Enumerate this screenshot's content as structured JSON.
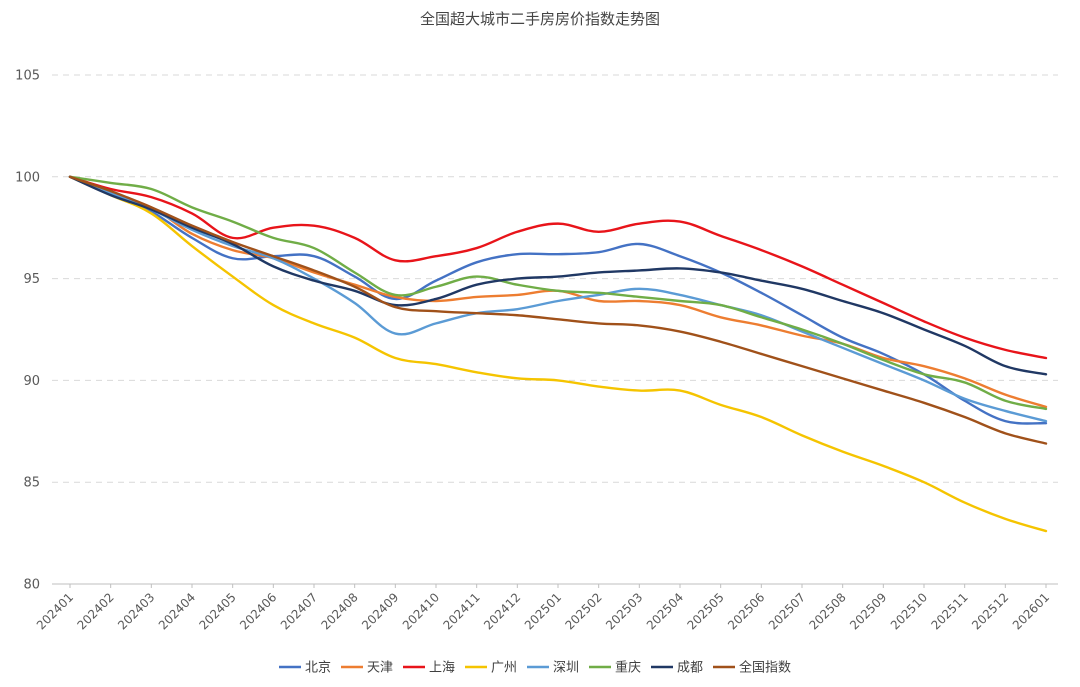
{
  "chart_data": {
    "type": "line",
    "title": "全国超大城市二手房房价指数走势图",
    "xlabel": "",
    "ylabel": "",
    "ylim": [
      80,
      105
    ],
    "yticks": [
      80,
      85,
      90,
      95,
      100,
      105
    ],
    "grid": true,
    "legend_position": "bottom",
    "x": [
      "202401",
      "202402",
      "202403",
      "202404",
      "202405",
      "202406",
      "202407",
      "202408",
      "202409",
      "202410",
      "202411",
      "202412",
      "202501",
      "202502",
      "202503",
      "202504",
      "202505",
      "202506",
      "202507",
      "202508",
      "202509",
      "202510",
      "202511",
      "202512",
      "202601"
    ],
    "series": [
      {
        "name": "北京",
        "color": "#4472c4",
        "values": [
          100,
          99.3,
          98.3,
          97.0,
          96.0,
          96.1,
          96.1,
          95.1,
          94.0,
          94.9,
          95.8,
          96.2,
          96.2,
          96.3,
          96.7,
          96.1,
          95.3,
          94.3,
          93.2,
          92.1,
          91.3,
          90.3,
          89.0,
          88.0,
          87.9
        ]
      },
      {
        "name": "天津",
        "color": "#ed7d31",
        "values": [
          100,
          99.2,
          98.5,
          97.2,
          96.4,
          96.0,
          95.3,
          94.7,
          94.1,
          93.9,
          94.1,
          94.2,
          94.4,
          93.9,
          93.9,
          93.7,
          93.1,
          92.7,
          92.2,
          91.8,
          91.1,
          90.7,
          90.1,
          89.3,
          88.7
        ]
      },
      {
        "name": "上海",
        "color": "#e8141a",
        "values": [
          100,
          99.4,
          99.0,
          98.2,
          97.0,
          97.5,
          97.6,
          97.0,
          95.9,
          96.1,
          96.5,
          97.3,
          97.7,
          97.3,
          97.7,
          97.8,
          97.1,
          96.4,
          95.6,
          94.7,
          93.8,
          92.9,
          92.1,
          91.5,
          91.1
        ]
      },
      {
        "name": "广州",
        "color": "#f5c400",
        "values": [
          100,
          99.1,
          98.2,
          96.6,
          95.1,
          93.7,
          92.8,
          92.1,
          91.1,
          90.8,
          90.4,
          90.1,
          90.0,
          89.7,
          89.5,
          89.5,
          88.8,
          88.2,
          87.3,
          86.5,
          85.8,
          85.0,
          84.0,
          83.2,
          82.6
        ]
      },
      {
        "name": "深圳",
        "color": "#5b9bd5",
        "values": [
          100,
          99.2,
          98.4,
          97.4,
          96.6,
          96.0,
          95.0,
          93.8,
          92.3,
          92.8,
          93.3,
          93.5,
          93.9,
          94.2,
          94.5,
          94.2,
          93.7,
          93.2,
          92.4,
          91.6,
          90.8,
          90.0,
          89.1,
          88.5,
          88.0
        ]
      },
      {
        "name": "重庆",
        "color": "#70ad47",
        "values": [
          100,
          99.7,
          99.4,
          98.5,
          97.8,
          97.0,
          96.5,
          95.3,
          94.2,
          94.6,
          95.1,
          94.7,
          94.4,
          94.3,
          94.1,
          93.9,
          93.7,
          93.1,
          92.5,
          91.8,
          91.0,
          90.3,
          89.9,
          89.0,
          88.6
        ]
      },
      {
        "name": "成都",
        "color": "#203864",
        "values": [
          100,
          99.1,
          98.4,
          97.5,
          96.7,
          95.6,
          94.9,
          94.4,
          93.7,
          94.0,
          94.7,
          95.0,
          95.1,
          95.3,
          95.4,
          95.5,
          95.3,
          94.9,
          94.5,
          93.9,
          93.3,
          92.5,
          91.7,
          90.7,
          90.3
        ]
      },
      {
        "name": "全国指数",
        "color": "#a0511a",
        "values": [
          100,
          99.3,
          98.5,
          97.6,
          96.8,
          96.1,
          95.4,
          94.6,
          93.6,
          93.4,
          93.3,
          93.2,
          93.0,
          92.8,
          92.7,
          92.4,
          91.9,
          91.3,
          90.7,
          90.1,
          89.5,
          88.9,
          88.2,
          87.4,
          86.9
        ]
      }
    ]
  }
}
